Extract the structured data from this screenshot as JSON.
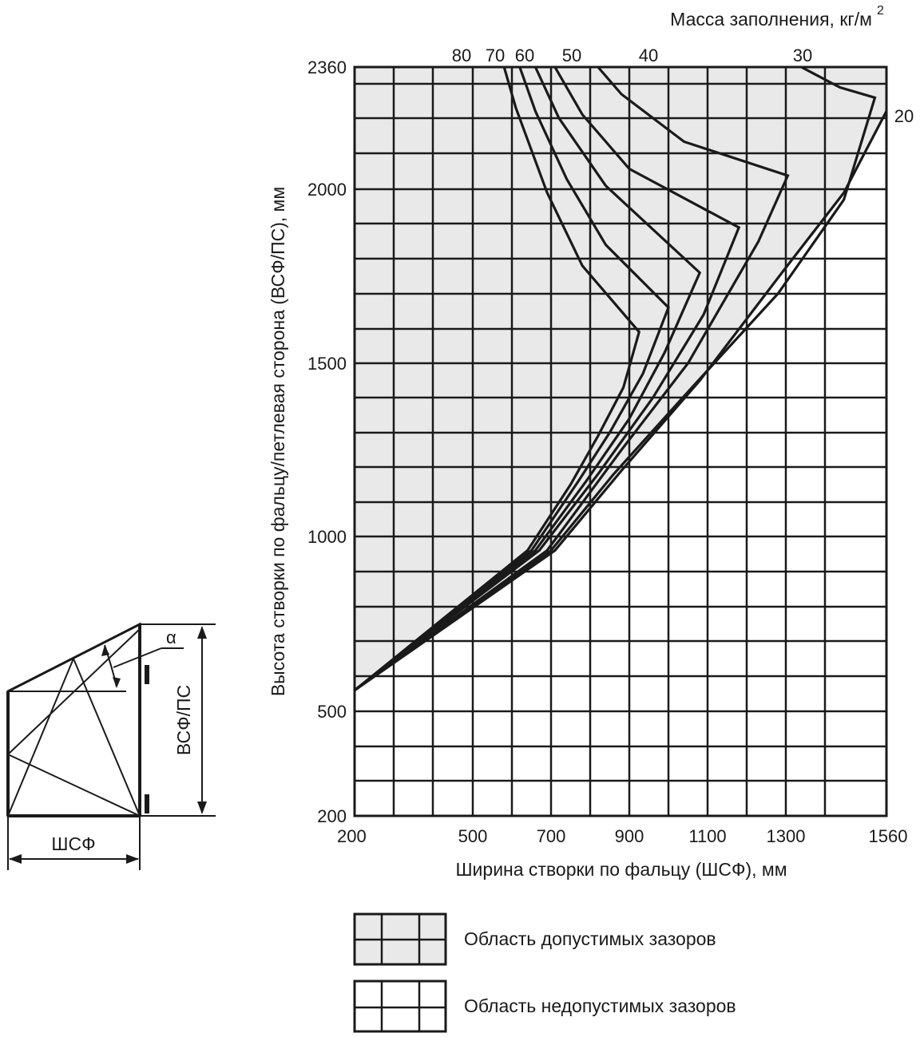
{
  "chart_data": {
    "type": "line",
    "title": "Масса заполнения, кг/м",
    "title_superscript": "2",
    "xlabel": "Ширина створки по фальцу (ШСФ), мм",
    "ylabel": "Высота створки по фальцу/петлевая сторона (ВСФ/ПС), мм",
    "xlim": [
      200,
      1560
    ],
    "ylim": [
      200,
      2360
    ],
    "x_ticks": [
      "200",
      "500",
      "700",
      "900",
      "1100",
      "1300",
      "1560"
    ],
    "y_ticks": [
      "200",
      "500",
      "1000",
      "1500",
      "2000",
      "2360"
    ],
    "x_tick_values": [
      200,
      500,
      700,
      900,
      1100,
      1300,
      1560
    ],
    "y_tick_values": [
      200,
      500,
      1000,
      1500,
      2000,
      2360
    ],
    "grid": true,
    "legend_position": "bottom",
    "legend": [
      {
        "label": "Область допустимых зазоров",
        "fill": "#e9e9e9"
      },
      {
        "label": "Область недопустимых зазоров",
        "fill": "#ffffff"
      }
    ],
    "series": [
      {
        "name": "80",
        "points": [
          [
            580,
            2360
          ],
          [
            610,
            2240
          ],
          [
            690,
            1990
          ],
          [
            780,
            1780
          ],
          [
            925,
            1590
          ],
          [
            885,
            1430
          ],
          [
            820,
            1290
          ],
          [
            750,
            1150
          ],
          [
            640,
            960
          ],
          [
            200,
            560
          ]
        ]
      },
      {
        "name": "70",
        "points": [
          [
            620,
            2360
          ],
          [
            660,
            2230
          ],
          [
            740,
            2030
          ],
          [
            840,
            1840
          ],
          [
            1000,
            1660
          ],
          [
            935,
            1470
          ],
          [
            850,
            1300
          ],
          [
            770,
            1160
          ],
          [
            650,
            960
          ],
          [
            200,
            560
          ]
        ]
      },
      {
        "name": "60",
        "points": [
          [
            660,
            2360
          ],
          [
            720,
            2210
          ],
          [
            840,
            2010
          ],
          [
            1080,
            1760
          ],
          [
            990,
            1530
          ],
          [
            900,
            1340
          ],
          [
            790,
            1160
          ],
          [
            660,
            960
          ],
          [
            200,
            560
          ]
        ]
      },
      {
        "name": "50",
        "points": [
          [
            710,
            2360
          ],
          [
            780,
            2220
          ],
          [
            900,
            2060
          ],
          [
            1180,
            1890
          ],
          [
            1090,
            1640
          ],
          [
            960,
            1400
          ],
          [
            820,
            1180
          ],
          [
            670,
            960
          ],
          [
            200,
            560
          ]
        ]
      },
      {
        "name": "40",
        "points": [
          [
            820,
            2360
          ],
          [
            880,
            2280
          ],
          [
            1040,
            2140
          ],
          [
            1305,
            2040
          ],
          [
            1230,
            1850
          ],
          [
            1050,
            1500
          ],
          [
            880,
            1250
          ],
          [
            690,
            960
          ],
          [
            200,
            560
          ]
        ]
      },
      {
        "name": "30",
        "points": [
          [
            1340,
            2360
          ],
          [
            1440,
            2300
          ],
          [
            1530,
            2270
          ],
          [
            1450,
            1970
          ],
          [
            1280,
            1700
          ],
          [
            1060,
            1430
          ],
          [
            860,
            1180
          ],
          [
            700,
            960
          ],
          [
            200,
            560
          ]
        ]
      },
      {
        "name": "20",
        "points": [
          [
            1560,
            2230
          ],
          [
            1450,
            1990
          ],
          [
            1290,
            1760
          ],
          [
            1080,
            1450
          ],
          [
            880,
            1190
          ],
          [
            710,
            960
          ],
          [
            200,
            560
          ]
        ]
      }
    ]
  },
  "inset": {
    "angle_label": "α",
    "height_label": "ВСФ/ПС",
    "width_label": "ШСФ"
  }
}
